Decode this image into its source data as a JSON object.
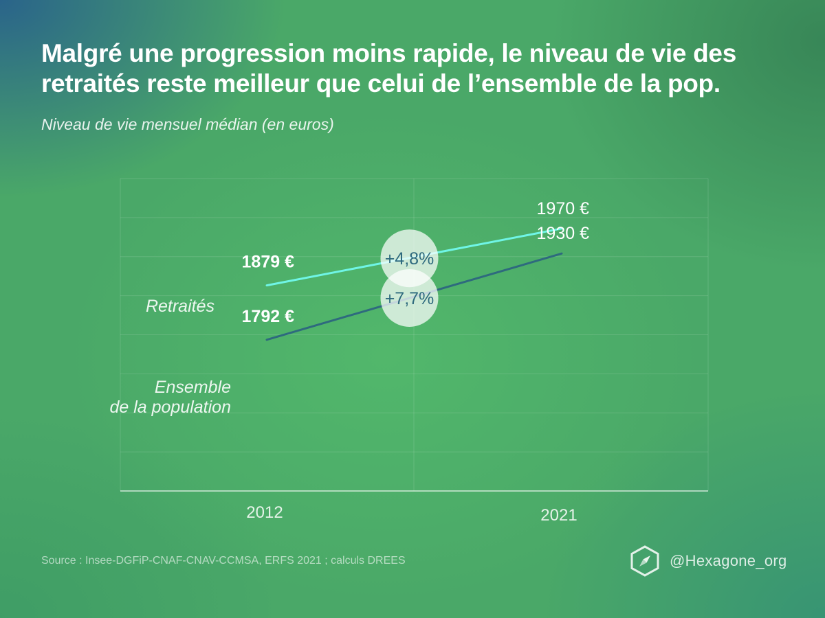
{
  "header": {
    "title": "Malgré une progression moins rapide, le niveau de vie des retraités reste meilleur que celui de l’ensemble de la pop.",
    "subtitle": "Niveau de vie mensuel médian (en euros)"
  },
  "chart_data": {
    "type": "line",
    "x": [
      "2012",
      "2021"
    ],
    "ylim": [
      1550,
      2050
    ],
    "grid": true,
    "series": [
      {
        "name": "Retraités",
        "values": [
          1879,
          1970
        ],
        "value_labels": [
          "1879 €",
          "1970 €"
        ],
        "change_label": "+4,8%",
        "color": "#6ff5e6"
      },
      {
        "name": "Ensemble\nde la population",
        "values": [
          1792,
          1930
        ],
        "value_labels": [
          "1792 €",
          "1930 €"
        ],
        "change_label": "+7,7%",
        "color": "#2e6a7e"
      }
    ]
  },
  "footer": {
    "source": "Source :  Insee-DGFiP-CNAF-CNAV-CCMSA, ERFS 2021 ; calculs DREES",
    "brand": "@Hexagone_org",
    "brand_icon": "hexagon-compass-icon"
  }
}
